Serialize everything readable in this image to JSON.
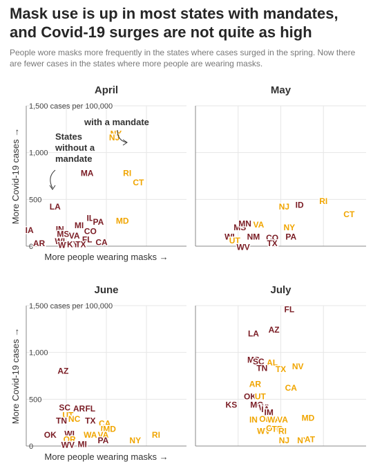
{
  "header": {
    "title": "Mask use is up in most states with mandates, and Covid-19 surges are not quite as high",
    "subtitle": "People wore masks more frequently in the states where cases surged in the spring. Now there are fewer cases in the states where more people are wearing masks."
  },
  "colors": {
    "no_mandate": "#7a1c24",
    "mandate": "#f0a500"
  },
  "axes": {
    "y_label": "More Covid-19 cases →",
    "x_label": "More people wearing masks →",
    "y_ticks": [
      {
        "value": 0,
        "label": "0"
      },
      {
        "value": 500,
        "label": "500"
      },
      {
        "value": 1000,
        "label": "1,000"
      },
      {
        "value": 1500,
        "label": "1,500 cases per 100,000"
      }
    ],
    "y_range": [
      0,
      1500
    ],
    "x_range": [
      0,
      100
    ]
  },
  "annotations": {
    "without_mandate": [
      "States",
      "without a",
      "mandate"
    ],
    "with_mandate": "with a mandate"
  },
  "chart_data": [
    {
      "type": "scatter",
      "title": "April",
      "points": [
        {
          "s": "NY",
          "x": 56,
          "y": 1200,
          "m": true
        },
        {
          "s": "NJ",
          "x": 55,
          "y": 1160,
          "m": true
        },
        {
          "s": "MA",
          "x": 38,
          "y": 780,
          "m": false
        },
        {
          "s": "RI",
          "x": 63,
          "y": 780,
          "m": true
        },
        {
          "s": "CT",
          "x": 70,
          "y": 680,
          "m": true
        },
        {
          "s": "LA",
          "x": 18,
          "y": 420,
          "m": false
        },
        {
          "s": "MD",
          "x": 60,
          "y": 270,
          "m": true
        },
        {
          "s": "IL",
          "x": 40,
          "y": 300,
          "m": false
        },
        {
          "s": "PA",
          "x": 45,
          "y": 260,
          "m": false
        },
        {
          "s": "MI",
          "x": 33,
          "y": 220,
          "m": false
        },
        {
          "s": "CO",
          "x": 40,
          "y": 160,
          "m": false
        },
        {
          "s": "IN",
          "x": 21,
          "y": 180,
          "m": false
        },
        {
          "s": "IA",
          "x": 2,
          "y": 170,
          "m": false
        },
        {
          "s": "MS",
          "x": 23,
          "y": 130,
          "m": false
        },
        {
          "s": "VA",
          "x": 30,
          "y": 110,
          "m": false
        },
        {
          "s": "FL",
          "x": 38,
          "y": 70,
          "m": false
        },
        {
          "s": "CA",
          "x": 47,
          "y": 40,
          "m": false
        },
        {
          "s": "AR",
          "x": 8,
          "y": 30,
          "m": false
        },
        {
          "s": "WI",
          "x": 21,
          "y": 50,
          "m": false
        },
        {
          "s": "WV",
          "x": 24,
          "y": 10,
          "m": false
        },
        {
          "s": "KY",
          "x": 29,
          "y": 20,
          "m": false
        },
        {
          "s": "TX",
          "x": 34,
          "y": 20,
          "m": false
        }
      ]
    },
    {
      "type": "scatter",
      "title": "May",
      "points": [
        {
          "s": "NJ",
          "x": 52,
          "y": 420,
          "m": true
        },
        {
          "s": "NY",
          "x": 55,
          "y": 200,
          "m": true
        },
        {
          "s": "ID",
          "x": 61,
          "y": 440,
          "m": false
        },
        {
          "s": "RI",
          "x": 75,
          "y": 480,
          "m": true
        },
        {
          "s": "CT",
          "x": 90,
          "y": 340,
          "m": true
        },
        {
          "s": "VA",
          "x": 37,
          "y": 230,
          "m": true
        },
        {
          "s": "MS",
          "x": 26,
          "y": 200,
          "m": false
        },
        {
          "s": "MN",
          "x": 29,
          "y": 240,
          "m": false
        },
        {
          "s": "PA",
          "x": 56,
          "y": 100,
          "m": false
        },
        {
          "s": "WI",
          "x": 20,
          "y": 100,
          "m": false
        },
        {
          "s": "NM",
          "x": 34,
          "y": 100,
          "m": false
        },
        {
          "s": "CO",
          "x": 45,
          "y": 90,
          "m": false
        },
        {
          "s": "TX",
          "x": 45,
          "y": 30,
          "m": false
        },
        {
          "s": "UT",
          "x": 23,
          "y": 60,
          "m": true
        },
        {
          "s": "WV",
          "x": 28,
          "y": -10,
          "m": false
        }
      ]
    },
    {
      "type": "scatter",
      "title": "June",
      "points": [
        {
          "s": "AZ",
          "x": 23,
          "y": 800,
          "m": false
        },
        {
          "s": "SC",
          "x": 24,
          "y": 410,
          "m": false
        },
        {
          "s": "AR",
          "x": 33,
          "y": 400,
          "m": false
        },
        {
          "s": "FL",
          "x": 40,
          "y": 400,
          "m": false
        },
        {
          "s": "UT",
          "x": 26,
          "y": 330,
          "m": true
        },
        {
          "s": "NC",
          "x": 30,
          "y": 290,
          "m": true
        },
        {
          "s": "TN",
          "x": 22,
          "y": 270,
          "m": false
        },
        {
          "s": "TX",
          "x": 40,
          "y": 270,
          "m": false
        },
        {
          "s": "CA",
          "x": 49,
          "y": 240,
          "m": true
        },
        {
          "s": "NV",
          "x": 50,
          "y": 180,
          "m": true
        },
        {
          "s": "MD",
          "x": 52,
          "y": 180,
          "m": true
        },
        {
          "s": "OK",
          "x": 15,
          "y": 120,
          "m": false
        },
        {
          "s": "WI",
          "x": 27,
          "y": 130,
          "m": false
        },
        {
          "s": "WA",
          "x": 40,
          "y": 120,
          "m": true
        },
        {
          "s": "VA",
          "x": 48,
          "y": 120,
          "m": true
        },
        {
          "s": "OR",
          "x": 27,
          "y": 70,
          "m": true
        },
        {
          "s": "PA",
          "x": 48,
          "y": 60,
          "m": false
        },
        {
          "s": "NY",
          "x": 68,
          "y": 60,
          "m": true
        },
        {
          "s": "RI",
          "x": 81,
          "y": 120,
          "m": true
        },
        {
          "s": "WV",
          "x": 26,
          "y": 10,
          "m": false
        },
        {
          "s": "MI",
          "x": 35,
          "y": 20,
          "m": false
        }
      ]
    },
    {
      "type": "scatter",
      "title": "July",
      "points": [
        {
          "s": "FL",
          "x": 55,
          "y": 1460,
          "m": false
        },
        {
          "s": "AZ",
          "x": 46,
          "y": 1240,
          "m": false
        },
        {
          "s": "LA",
          "x": 34,
          "y": 1200,
          "m": false
        },
        {
          "s": "MS",
          "x": 34,
          "y": 920,
          "m": false
        },
        {
          "s": "SC",
          "x": 37,
          "y": 900,
          "m": false
        },
        {
          "s": "AL",
          "x": 45,
          "y": 890,
          "m": true
        },
        {
          "s": "TN",
          "x": 39,
          "y": 830,
          "m": false
        },
        {
          "s": "TX",
          "x": 50,
          "y": 820,
          "m": true
        },
        {
          "s": "NV",
          "x": 60,
          "y": 850,
          "m": true
        },
        {
          "s": "AR",
          "x": 35,
          "y": 660,
          "m": true
        },
        {
          "s": "CA",
          "x": 56,
          "y": 620,
          "m": true
        },
        {
          "s": "OK",
          "x": 32,
          "y": 530,
          "m": false
        },
        {
          "s": "UT",
          "x": 38,
          "y": 530,
          "m": true
        },
        {
          "s": "KS",
          "x": 21,
          "y": 440,
          "m": false
        },
        {
          "s": "MO",
          "x": 36,
          "y": 440,
          "m": false
        },
        {
          "s": "WI",
          "x": 40,
          "y": 410,
          "m": false
        },
        {
          "s": "IA",
          "x": 41,
          "y": 390,
          "m": false
        },
        {
          "s": "IM",
          "x": 43,
          "y": 360,
          "m": false
        },
        {
          "s": "IN",
          "x": 34,
          "y": 280,
          "m": true
        },
        {
          "s": "OH",
          "x": 41,
          "y": 290,
          "m": true
        },
        {
          "s": "WA",
          "x": 46,
          "y": 280,
          "m": true
        },
        {
          "s": "VA",
          "x": 51,
          "y": 280,
          "m": true
        },
        {
          "s": "MD",
          "x": 66,
          "y": 300,
          "m": true
        },
        {
          "s": "WV",
          "x": 40,
          "y": 160,
          "m": true
        },
        {
          "s": "OR",
          "x": 45,
          "y": 190,
          "m": true
        },
        {
          "s": "TR",
          "x": 48,
          "y": 180,
          "m": true
        },
        {
          "s": "RI",
          "x": 51,
          "y": 160,
          "m": true
        },
        {
          "s": "NJ",
          "x": 52,
          "y": 60,
          "m": true
        },
        {
          "s": "NY",
          "x": 63,
          "y": 60,
          "m": true
        },
        {
          "s": "AT",
          "x": 67,
          "y": 70,
          "m": true
        }
      ]
    }
  ]
}
